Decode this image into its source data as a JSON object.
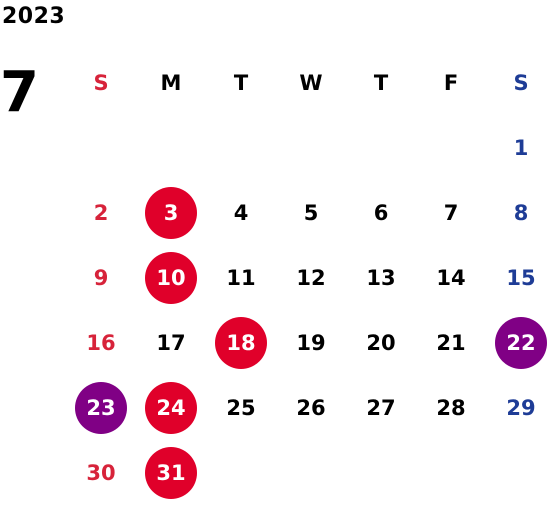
{
  "year": "2023",
  "month": "7",
  "colors": {
    "sunday": "#d7233a",
    "saturday": "#1e3c96",
    "weekday": "#000000",
    "holiday_circle": "#e0002a",
    "special_circle": "#800085",
    "circle_text": "#ffffff"
  },
  "weekdays": [
    "S",
    "M",
    "T",
    "W",
    "T",
    "F",
    "S"
  ],
  "weeks": [
    [
      "",
      "",
      "",
      "",
      "",
      "",
      "1"
    ],
    [
      "2",
      "3",
      "4",
      "5",
      "6",
      "7",
      "8"
    ],
    [
      "9",
      "10",
      "11",
      "12",
      "13",
      "14",
      "15"
    ],
    [
      "16",
      "17",
      "18",
      "19",
      "20",
      "21",
      "22"
    ],
    [
      "23",
      "24",
      "25",
      "26",
      "27",
      "28",
      "29"
    ],
    [
      "30",
      "31",
      "",
      "",
      "",
      "",
      ""
    ]
  ],
  "marked_days": {
    "red": [
      "3",
      "10",
      "18",
      "24",
      "31"
    ],
    "purple": [
      "22",
      "23"
    ]
  }
}
